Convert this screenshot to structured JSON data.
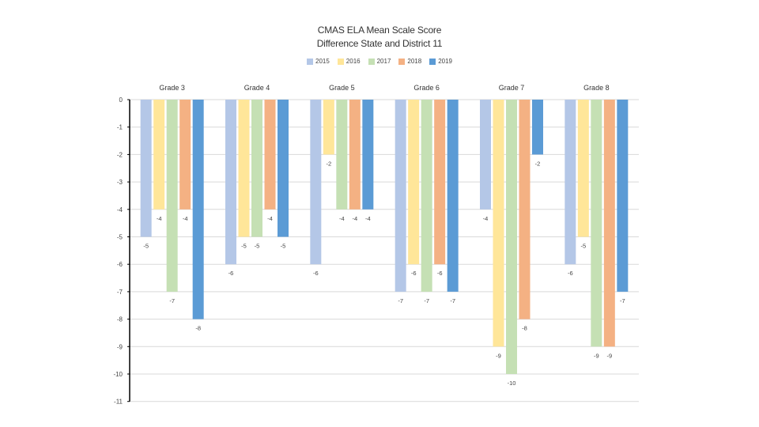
{
  "chart_data": {
    "type": "bar",
    "title_lines": [
      "CMAS ELA Mean Scale Score",
      "Difference State and District 11"
    ],
    "categories": [
      "Grade 3",
      "Grade 4",
      "Grade 5",
      "Grade 6",
      "Grade 7",
      "Grade 8"
    ],
    "series": [
      {
        "name": "2015",
        "color": "#b4c7e7",
        "values": [
          -5,
          -6,
          -6,
          -7,
          -4,
          -6
        ]
      },
      {
        "name": "2016",
        "color": "#ffe699",
        "values": [
          -4,
          -5,
          -2,
          -6,
          -9,
          -5
        ]
      },
      {
        "name": "2017",
        "color": "#c5e0b4",
        "values": [
          -7,
          -5,
          -4,
          -7,
          -10,
          -9
        ]
      },
      {
        "name": "2018",
        "color": "#f4b183",
        "values": [
          -4,
          -4,
          -4,
          -6,
          -8,
          -9
        ]
      },
      {
        "name": "2019",
        "color": "#5b9bd5",
        "values": [
          -8,
          -5,
          -4,
          -7,
          -2,
          -7
        ]
      }
    ],
    "y_ticks": [
      "0",
      "-1",
      "-2",
      "-3",
      "-4",
      "-5",
      "-6",
      "-7",
      "-8",
      "-9",
      "-10",
      "-11"
    ],
    "ylim": [
      -11,
      0
    ],
    "xlabel": "",
    "ylabel": "",
    "legend_position": "top-center",
    "grid": true
  }
}
